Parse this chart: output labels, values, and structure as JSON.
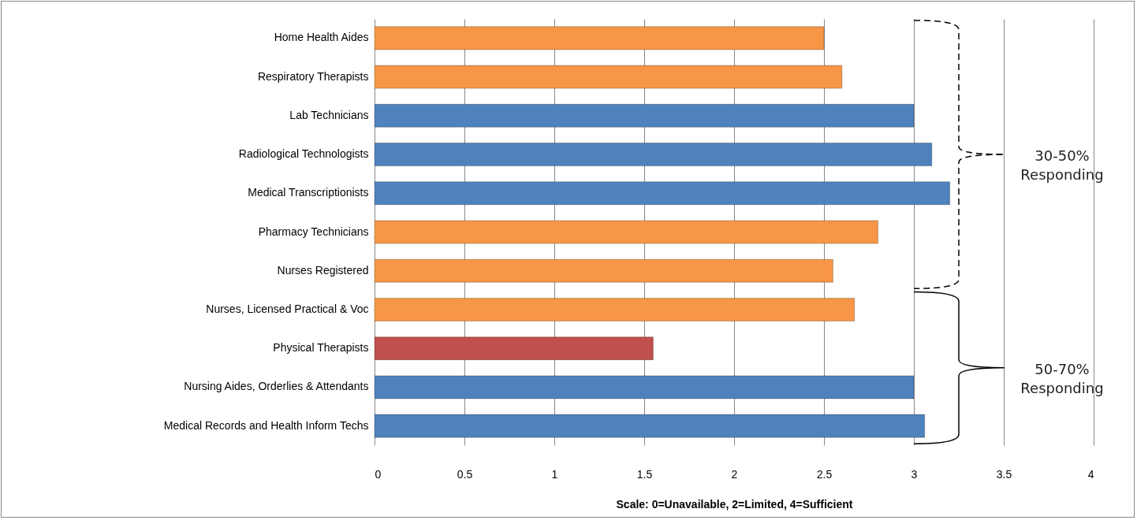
{
  "chart_data": {
    "type": "bar",
    "orientation": "horizontal",
    "xlabel": "Scale: 0=Unavailable, 2=Limited, 4=Sufficient",
    "categories": [
      "Home Health Aides",
      "Respiratory Therapists",
      "Lab Technicians",
      "Radiological Technologists",
      "Medical Transcriptionists",
      "Pharmacy Technicians",
      "Nurses Registered",
      "Nurses, Licensed Practical & Voc",
      "Physical Therapists",
      "Nursing Aides, Orderlies & Attendants",
      "Medical Records and Health Inform Techs"
    ],
    "values": [
      2.5,
      2.6,
      3.0,
      3.1,
      3.2,
      2.8,
      2.55,
      2.67,
      1.55,
      3.0,
      3.06
    ],
    "colors": [
      "#f79646",
      "#f79646",
      "#4f81bd",
      "#4f81bd",
      "#4f81bd",
      "#f79646",
      "#f79646",
      "#f79646",
      "#c0504d",
      "#4f81bd",
      "#4f81bd"
    ],
    "xlim": [
      0,
      4
    ],
    "xticks": [
      0,
      0.5,
      1,
      1.5,
      2,
      2.5,
      3,
      3.5,
      4
    ],
    "grid": "x",
    "annotations": [
      "30-50% Responding",
      "50-70% Responding"
    ]
  }
}
